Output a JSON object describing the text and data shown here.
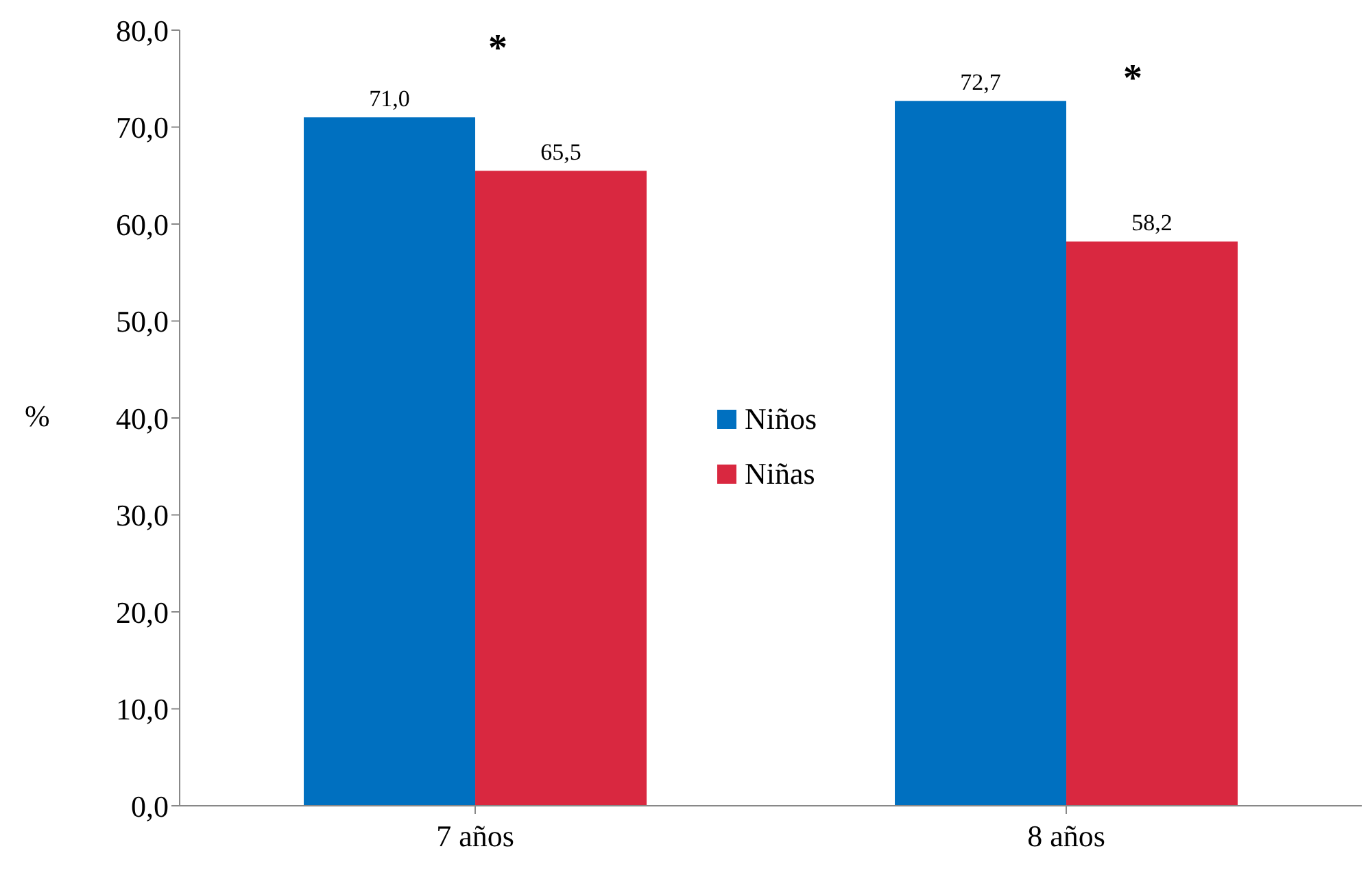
{
  "chart_data": {
    "type": "bar",
    "categories": [
      "7 años",
      "8 años"
    ],
    "ylabel": "%",
    "series": [
      {
        "name": "Niños",
        "color": "#0070c0",
        "values": [
          71.0,
          72.7
        ],
        "value_labels": [
          "71,0",
          "72,7"
        ]
      },
      {
        "name": "Niñas",
        "color": "#d92840",
        "values": [
          65.5,
          58.2
        ],
        "value_labels": [
          "65,5",
          "58,2"
        ]
      }
    ],
    "ylim": [
      0,
      80
    ],
    "yticks": [
      {
        "value": 0,
        "label": "0,0"
      },
      {
        "value": 10,
        "label": "10,0"
      },
      {
        "value": 20,
        "label": "20,0"
      },
      {
        "value": 30,
        "label": "30,0"
      },
      {
        "value": 40,
        "label": "40,0"
      },
      {
        "value": 50,
        "label": "50,0"
      },
      {
        "value": 60,
        "label": "60,0"
      },
      {
        "value": 70,
        "label": "70,0"
      },
      {
        "value": 80,
        "label": "80,0"
      }
    ],
    "annotations": [
      "*",
      "*"
    ],
    "legend": "center",
    "grid": false
  }
}
